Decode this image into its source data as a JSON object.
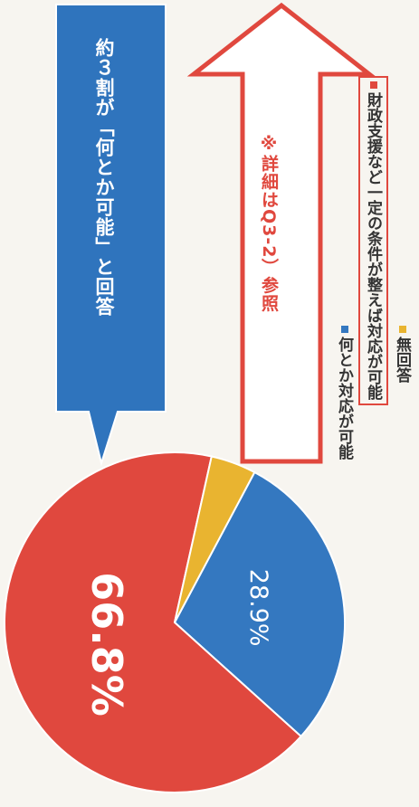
{
  "chart_data": {
    "type": "pie",
    "slices": [
      {
        "label": "何とか対応が可能",
        "value": 28.9,
        "color": "#3478c0",
        "data_label": "28.9%"
      },
      {
        "label": "財政支援など一定の条件が整えば対応が可能",
        "value": 66.8,
        "color": "#e0483e",
        "data_label": "66.8%"
      },
      {
        "label": "無回答",
        "value": 4.3,
        "color": "#e9b430",
        "data_label": ""
      }
    ],
    "orientation": "rotated-90-clockwise",
    "legend_position": "right",
    "annotations": {
      "callout": "約３割が「何とか可能」と回答",
      "note": "※詳細はQ3-2）参照"
    }
  }
}
